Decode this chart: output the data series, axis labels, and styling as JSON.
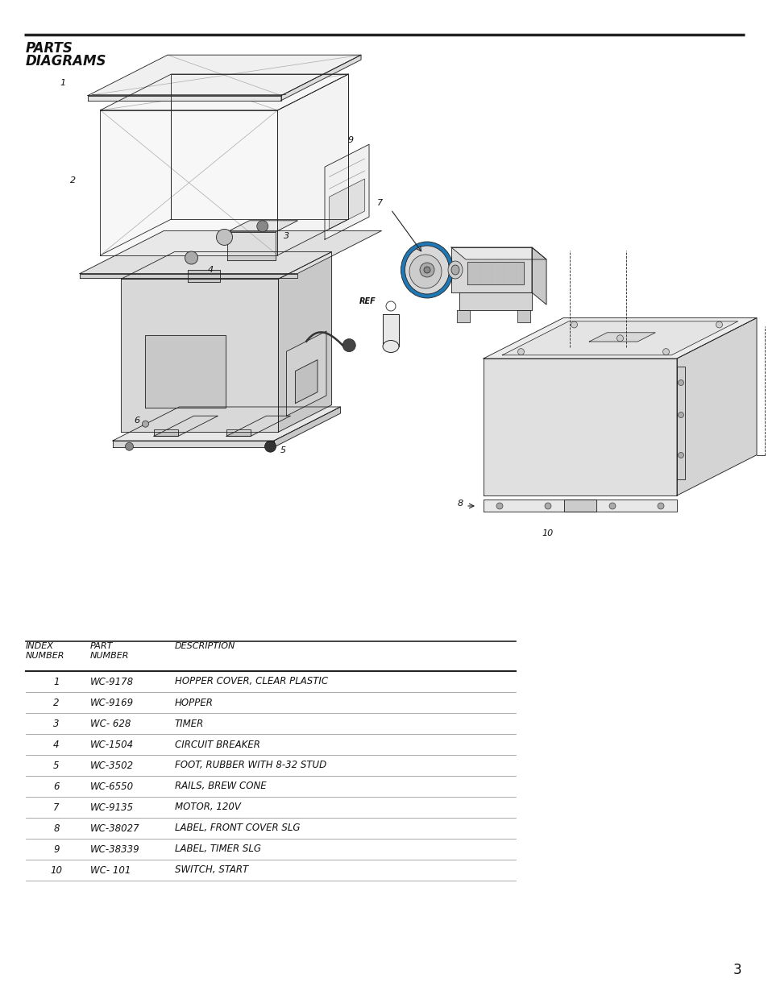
{
  "title_line1": "PARTS",
  "title_line2": "DIAGRAMS",
  "page_number": "3",
  "bg_color": "#ffffff",
  "text_color": "#111111",
  "header_line_color": "#111111",
  "table_data": [
    [
      "1",
      "WC-9178",
      "HOPPER COVER, CLEAR PLASTIC"
    ],
    [
      "2",
      "WC-9169",
      "HOPPER"
    ],
    [
      "3",
      "WC- 628",
      "TIMER"
    ],
    [
      "4",
      "WC-1504",
      "CIRCUIT BREAKER"
    ],
    [
      "5",
      "WC-3502",
      "FOOT, RUBBER WITH 8-32 STUD"
    ],
    [
      "6",
      "WC-6550",
      "RAILS, BREW CONE"
    ],
    [
      "7",
      "WC-9135",
      "MOTOR, 120V"
    ],
    [
      "8",
      "WC-38027",
      "LABEL, FRONT COVER SLG"
    ],
    [
      "9",
      "WC-38339",
      "LABEL, TIMER SLG"
    ],
    [
      "10",
      "WC- 101",
      "SWITCH, START"
    ]
  ]
}
